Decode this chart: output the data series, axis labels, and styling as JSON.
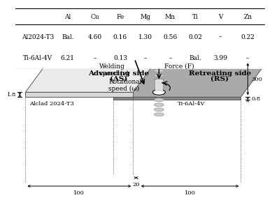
{
  "table_headers": [
    "",
    "Al",
    "Cu",
    "Fe",
    "Mg",
    "Mn",
    "Ti",
    "V",
    "Zn"
  ],
  "table_rows": [
    [
      "Al2024-T3",
      "Bal.",
      "4.60",
      "0.16",
      "1.30",
      "0.56",
      "0.02",
      "–",
      "0.22"
    ],
    [
      "Ti-6Al-4V",
      "6.21",
      "–",
      "0.13",
      "–",
      "–",
      "Bal.",
      "3.99",
      "–"
    ]
  ],
  "al_plate_color_top": "#ebebeb",
  "al_plate_color_front": "#d8d8d8",
  "ti_plate_color_top": "#aaaaaa",
  "ti_plate_color_front": "#888888",
  "advancing_side": "Advancing side\n(AS)",
  "retreating_side": "Retreating side\n(RS)",
  "force_label": "Force (F)",
  "rot_label": "Rotational\nspeed (ω)",
  "weld_label": "Welding\nspeed (v)",
  "alclad_label": "Alclad 2024-T3",
  "ti_label": "Ti-6Al-4V",
  "dim_18": "1.8",
  "dim_08": "0.8",
  "dim_300": "300",
  "dim_100L": "100",
  "dim_20": "20",
  "dim_100R": "100"
}
